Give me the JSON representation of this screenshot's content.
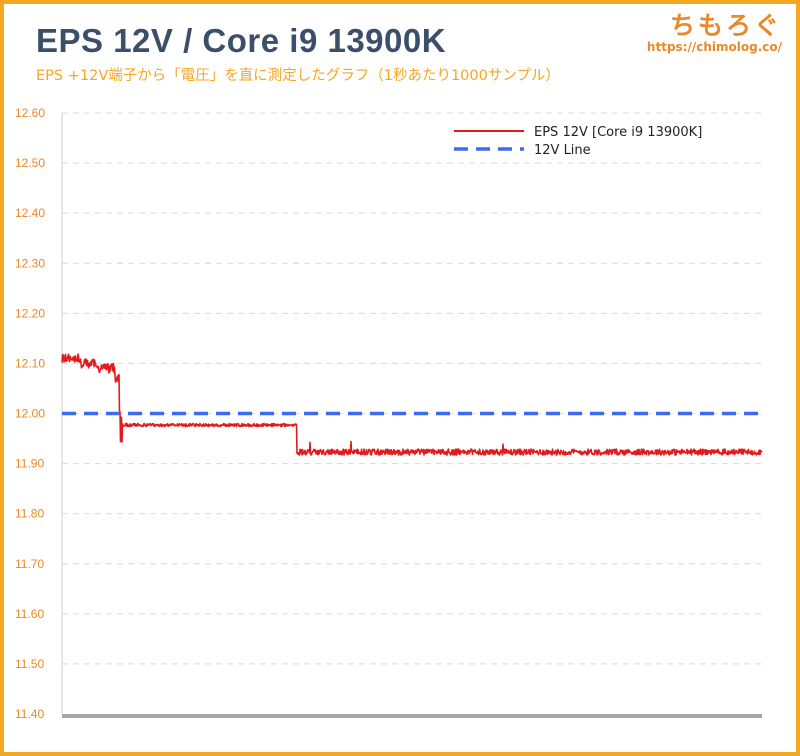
{
  "header": {
    "title": "EPS 12V / Core i9 13900K",
    "subtitle": "EPS +12V端子から「電圧」を直に測定したグラフ（1秒あたり1000サンプル）"
  },
  "brand": {
    "name": "ちもろぐ",
    "url": "https://chimolog.co/"
  },
  "colors": {
    "frame": "#f5a623",
    "title": "#3b4f6b",
    "tick_labels": "#e8892b",
    "eps_series": "#e31a1c",
    "reference_line": "#3b6cf0",
    "grid": "#d9d9d9",
    "axis": "#a6a6a6"
  },
  "chart_data": {
    "type": "line",
    "title": "EPS 12V / Core i9 13900K",
    "xlabel": "",
    "ylabel": "",
    "ylim": [
      11.4,
      12.6
    ],
    "y_ticks": [
      "12.60",
      "12.50",
      "12.40",
      "12.30",
      "12.20",
      "12.10",
      "12.00",
      "11.90",
      "11.80",
      "11.70",
      "11.60",
      "11.50",
      "11.40"
    ],
    "grid": true,
    "legend_position": "top-right",
    "series": [
      {
        "name": "EPS 12V [Core i9 13900K]",
        "style": "solid",
        "color": "#e31a1c",
        "segments": [
          {
            "from": 0.0,
            "to": 0.025,
            "level": 12.11,
            "noise": 0.009
          },
          {
            "from": 0.025,
            "to": 0.05,
            "level": 12.1,
            "noise": 0.009
          },
          {
            "from": 0.05,
            "to": 0.075,
            "level": 12.09,
            "noise": 0.01
          },
          {
            "from": 0.075,
            "to": 0.082,
            "level": 12.07,
            "noise": 0.008
          },
          {
            "from": 0.082,
            "to": 0.086,
            "level": 12.0,
            "noise": 0.01,
            "dip": 11.94
          },
          {
            "from": 0.086,
            "to": 0.335,
            "level": 11.977,
            "noise": 0.003
          },
          {
            "from": 0.335,
            "to": 0.338,
            "level": 11.92,
            "noise": 0.004,
            "dip": 11.905
          },
          {
            "from": 0.338,
            "to": 1.0,
            "level": 11.923,
            "noise": 0.006
          }
        ]
      },
      {
        "name": "12V Line",
        "style": "dashed",
        "color": "#3b6cf0",
        "values": [
          12.0,
          12.0
        ]
      }
    ]
  }
}
